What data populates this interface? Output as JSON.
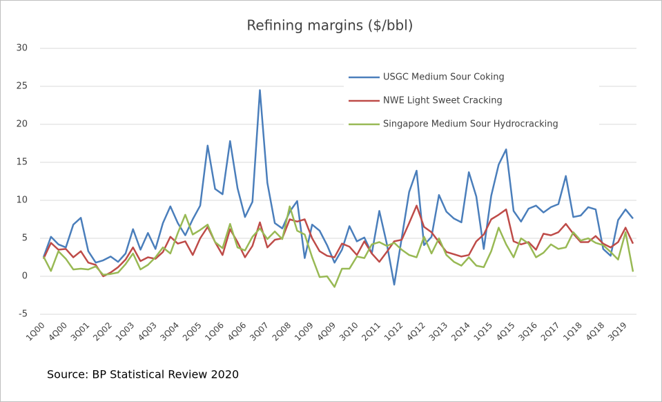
{
  "chart_data": {
    "type": "line",
    "title": "Refining margins ($/bbl)",
    "source": "Source:  BP Statistical Review 2020",
    "categories": [
      "1Q00",
      null,
      null,
      "4Q00",
      null,
      null,
      "3Q01",
      null,
      null,
      "2Q02",
      null,
      null,
      "1Q03",
      null,
      null,
      "4Q03",
      null,
      null,
      "3Q04",
      null,
      null,
      "2Q05",
      null,
      null,
      "1Q06",
      null,
      null,
      "4Q06",
      null,
      null,
      "3Q07",
      null,
      null,
      "2Q08",
      null,
      null,
      "1Q09",
      null,
      null,
      "4Q09",
      null,
      null,
      "3Q10",
      null,
      null,
      "2Q11",
      null,
      null,
      "1Q12",
      null,
      null,
      "4Q12",
      null,
      null,
      "3Q13",
      null,
      null,
      "2Q14",
      null,
      null,
      "1Q15",
      null,
      null,
      "4Q15",
      null,
      null,
      "3Q16",
      null,
      null,
      "2Q17",
      null,
      null,
      "1Q18",
      null,
      null,
      "4Q18",
      null,
      null,
      "3Q19",
      null
    ],
    "series": [
      {
        "name": "USGC Medium Sour Coking",
        "color": "#4a7ebb",
        "values": [
          2.5,
          5.2,
          4.2,
          3.8,
          6.8,
          7.7,
          3.3,
          1.8,
          2.1,
          2.6,
          1.9,
          3.0,
          6.2,
          3.5,
          5.7,
          3.6,
          7.0,
          9.2,
          7.0,
          5.4,
          7.5,
          9.3,
          17.2,
          11.5,
          10.8,
          17.8,
          11.6,
          7.8,
          9.8,
          24.5,
          12.3,
          7.0,
          6.3,
          8.5,
          9.9,
          2.4,
          6.8,
          6.0,
          4.1,
          1.8,
          3.5,
          6.6,
          4.6,
          5.1,
          3.0,
          8.6,
          4.3,
          -1.1,
          5.0,
          11.1,
          13.9,
          4.1,
          5.2,
          10.7,
          8.5,
          7.6,
          7.1,
          13.7,
          10.5,
          3.6,
          10.6,
          14.7,
          16.7,
          8.6,
          7.2,
          8.9,
          9.3,
          8.4,
          9.1,
          9.5,
          13.2,
          7.8,
          8.0,
          9.1,
          8.8,
          3.6,
          2.7,
          7.4,
          8.8,
          7.6
        ]
      },
      {
        "name": "NWE Light Sweet Cracking",
        "color": "#be4b48",
        "values": [
          2.3,
          4.4,
          3.5,
          3.6,
          2.5,
          3.3,
          1.8,
          1.5,
          0.0,
          0.5,
          1.2,
          2.2,
          3.8,
          2.0,
          2.5,
          2.3,
          3.2,
          5.2,
          4.3,
          4.6,
          2.8,
          5.0,
          6.5,
          4.5,
          2.8,
          6.2,
          4.5,
          2.5,
          4.0,
          7.1,
          3.8,
          4.8,
          5.0,
          7.5,
          7.2,
          7.5,
          5.0,
          3.3,
          2.7,
          2.5,
          4.3,
          3.9,
          2.8,
          4.6,
          3.0,
          1.9,
          3.2,
          4.6,
          4.8,
          7.0,
          9.3,
          6.5,
          5.8,
          4.5,
          3.2,
          2.9,
          2.6,
          2.8,
          4.6,
          5.5,
          7.5,
          8.1,
          8.8,
          4.6,
          4.2,
          4.5,
          3.5,
          5.6,
          5.4,
          5.8,
          6.9,
          5.6,
          4.5,
          4.5,
          5.3,
          4.3,
          3.8,
          4.5,
          6.4,
          4.3
        ]
      },
      {
        "name": "Singapore Medium Sour Hydrocracking",
        "color": "#98b954",
        "values": [
          2.6,
          0.7,
          3.3,
          2.3,
          0.9,
          1.0,
          0.9,
          1.3,
          0.2,
          0.3,
          0.5,
          1.6,
          3.0,
          0.9,
          1.5,
          2.5,
          3.8,
          3.0,
          5.7,
          8.1,
          5.5,
          6.1,
          6.8,
          4.5,
          3.7,
          6.9,
          3.8,
          3.4,
          5.2,
          6.3,
          4.9,
          5.9,
          4.9,
          9.2,
          6.0,
          5.5,
          2.5,
          -0.1,
          0.0,
          -1.4,
          1.0,
          1.0,
          2.6,
          2.4,
          4.2,
          4.5,
          4.0,
          4.4,
          3.5,
          2.8,
          2.5,
          5.2,
          3.0,
          5.0,
          2.8,
          1.9,
          1.4,
          2.5,
          1.4,
          1.2,
          3.3,
          6.4,
          4.2,
          2.5,
          5.0,
          4.3,
          2.5,
          3.1,
          4.2,
          3.6,
          3.8,
          5.8,
          4.7,
          5.0,
          4.4,
          4.1,
          3.2,
          2.2,
          5.8,
          0.6
        ]
      }
    ],
    "ylim": [
      -5,
      30
    ],
    "yticks": [
      -5,
      0,
      5,
      10,
      15,
      20,
      25,
      30
    ],
    "grid": true
  }
}
